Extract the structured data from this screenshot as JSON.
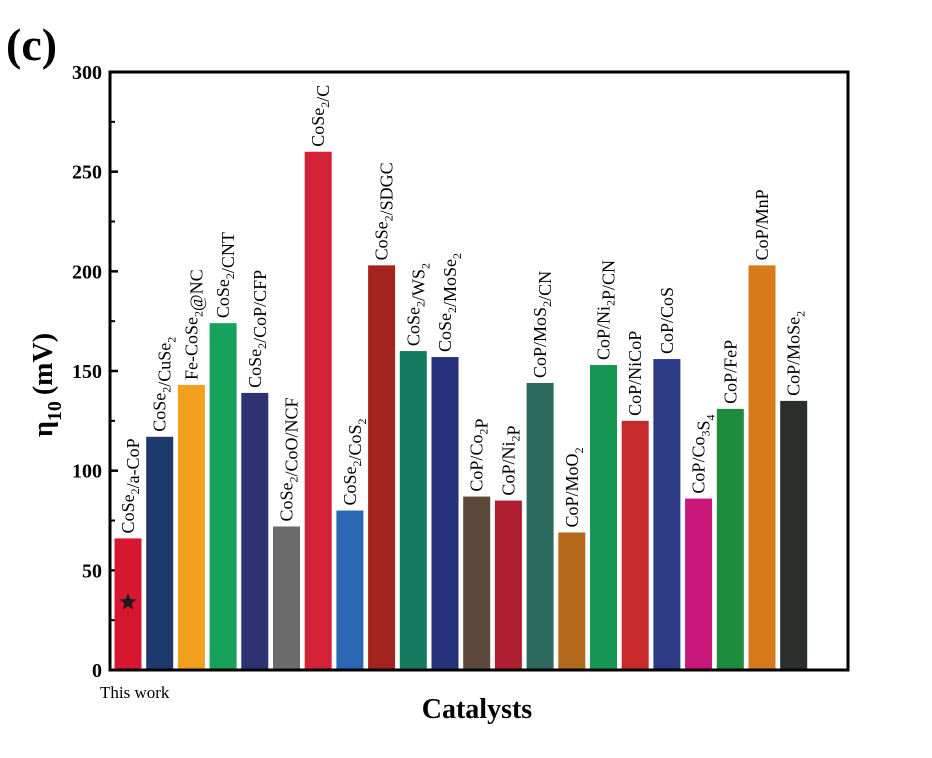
{
  "panel_label": "(c)",
  "this_work_label": "This work",
  "chart_data": {
    "type": "bar",
    "ylabel_main": "η",
    "ylabel_sub": "10",
    "ylabel_unit": "(mV)",
    "xlabel": "Catalysts",
    "ylim": [
      0,
      300
    ],
    "yticks": [
      "0",
      "50",
      "100",
      "150",
      "200",
      "250",
      "300"
    ],
    "grid": false,
    "bars": [
      {
        "parts": [
          {
            "t": "CoSe"
          },
          {
            "t": "2",
            "sub": true
          },
          {
            "t": "/a-CoP"
          }
        ],
        "value": 66,
        "color": "#d7172f"
      },
      {
        "parts": [
          {
            "t": "CoSe"
          },
          {
            "t": "2",
            "sub": true
          },
          {
            "t": "/CuSe"
          },
          {
            "t": "2",
            "sub": true
          }
        ],
        "value": 117,
        "color": "#1e3a6c"
      },
      {
        "parts": [
          {
            "t": "Fe-CoSe"
          },
          {
            "t": "2",
            "sub": true
          },
          {
            "t": "@NC"
          }
        ],
        "value": 143,
        "color": "#f2a01e"
      },
      {
        "parts": [
          {
            "t": "CoSe"
          },
          {
            "t": "2",
            "sub": true
          },
          {
            "t": "/CNT"
          }
        ],
        "value": 174,
        "color": "#16a25a"
      },
      {
        "parts": [
          {
            "t": "CoSe"
          },
          {
            "t": "2",
            "sub": true
          },
          {
            "t": "/CoP/CFP"
          }
        ],
        "value": 139,
        "color": "#2d3372"
      },
      {
        "parts": [
          {
            "t": "CoSe"
          },
          {
            "t": "2",
            "sub": true
          },
          {
            "t": "/CoO/NCF"
          }
        ],
        "value": 72,
        "color": "#6b6b6b"
      },
      {
        "parts": [
          {
            "t": "CoSe"
          },
          {
            "t": "2",
            "sub": true
          },
          {
            "t": "/C"
          }
        ],
        "value": 260,
        "color": "#d32238"
      },
      {
        "parts": [
          {
            "t": "CoSe"
          },
          {
            "t": "2",
            "sub": true
          },
          {
            "t": "/CoS"
          },
          {
            "t": "2",
            "sub": true
          }
        ],
        "value": 80,
        "color": "#2c67b3"
      },
      {
        "parts": [
          {
            "t": "CoSe"
          },
          {
            "t": "2",
            "sub": true
          },
          {
            "t": "/SDGC"
          }
        ],
        "value": 203,
        "color": "#a3241f"
      },
      {
        "parts": [
          {
            "t": "CoSe"
          },
          {
            "t": "2",
            "sub": true
          },
          {
            "t": "/WS"
          },
          {
            "t": "2",
            "sub": true
          }
        ],
        "value": 160,
        "color": "#137a5e"
      },
      {
        "parts": [
          {
            "t": "CoSe"
          },
          {
            "t": "2",
            "sub": true
          },
          {
            "t": "/MoSe"
          },
          {
            "t": "2",
            "sub": true
          }
        ],
        "value": 157,
        "color": "#27307a"
      },
      {
        "parts": [
          {
            "t": "CoP/Co"
          },
          {
            "t": "2",
            "sub": true
          },
          {
            "t": "P"
          }
        ],
        "value": 87,
        "color": "#5e4a3c"
      },
      {
        "parts": [
          {
            "t": "CoP/Ni"
          },
          {
            "t": "2",
            "sub": true
          },
          {
            "t": "P"
          }
        ],
        "value": 85,
        "color": "#b01e32"
      },
      {
        "parts": [
          {
            "t": "CoP/MoS"
          },
          {
            "t": "2",
            "sub": true
          },
          {
            "t": "/CN"
          }
        ],
        "value": 144,
        "color": "#2c6a5e"
      },
      {
        "parts": [
          {
            "t": "CoP/MoO"
          },
          {
            "t": "2",
            "sub": true
          }
        ],
        "value": 69,
        "color": "#b5691d"
      },
      {
        "parts": [
          {
            "t": "CoP/Ni"
          },
          {
            "t": "2",
            "sub": true
          },
          {
            "t": "P/CN"
          }
        ],
        "value": 153,
        "color": "#159653"
      },
      {
        "parts": [
          {
            "t": "CoP/NiCoP"
          }
        ],
        "value": 125,
        "color": "#c62a2a"
      },
      {
        "parts": [
          {
            "t": "CoP/CoS"
          }
        ],
        "value": 156,
        "color": "#2d3a85"
      },
      {
        "parts": [
          {
            "t": "CoP/Co"
          },
          {
            "t": "3",
            "sub": true
          },
          {
            "t": "S"
          },
          {
            "t": "4",
            "sub": true
          }
        ],
        "value": 86,
        "color": "#c9167a"
      },
      {
        "parts": [
          {
            "t": "CoP/FeP"
          }
        ],
        "value": 131,
        "color": "#1e8b3e"
      },
      {
        "parts": [
          {
            "t": "CoP/MnP"
          }
        ],
        "value": 203,
        "color": "#d77a1c"
      },
      {
        "parts": [
          {
            "t": "CoP/MoSe"
          },
          {
            "t": "2",
            "sub": true
          }
        ],
        "value": 135,
        "color": "#2a2f2b"
      }
    ]
  }
}
